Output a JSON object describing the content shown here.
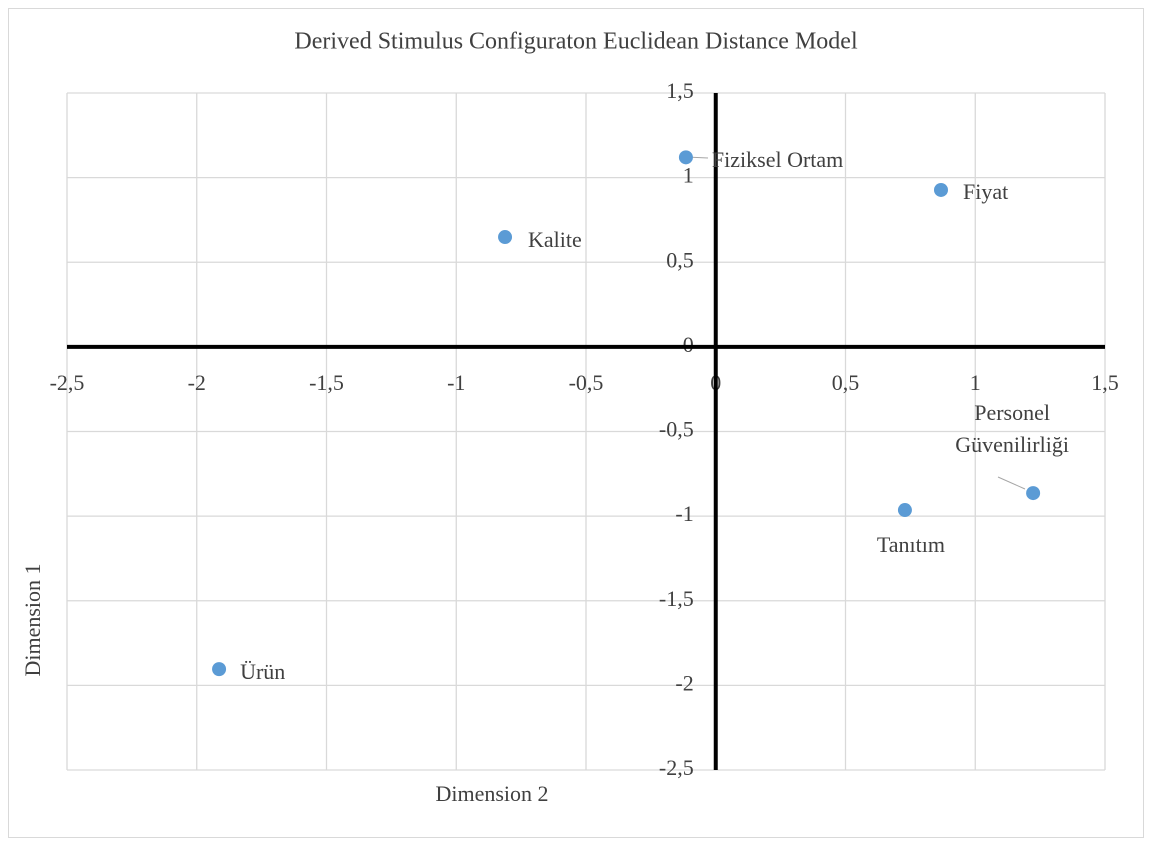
{
  "chart_data": {
    "type": "scatter",
    "title": "Derived Stimulus Configuraton Euclidean Distance Model",
    "xlabel": "Dimension 2",
    "ylabel": "Dimension 1",
    "labels": [
      "Fiziksel Ortam",
      "Fiyat",
      "Kalite",
      "Personel Güvenilirliği",
      "Tanıtım",
      "Ürün"
    ],
    "x": [
      -0.115,
      0.868,
      -0.812,
      1.223,
      0.729,
      -1.914
    ],
    "values": [
      1.12,
      0.927,
      0.649,
      -0.864,
      -0.964,
      -1.904
    ],
    "color": "#5b9bd5",
    "xlim": [
      -2.5,
      1.5
    ],
    "xticks": [
      {
        "value": -2.5,
        "label": "-2,5"
      },
      -2,
      {
        "value": -1.5,
        "label": "-1,5"
      },
      -1,
      {
        "value": -0.5,
        "label": "-0,5"
      },
      0,
      {
        "value": 0.5,
        "label": "0,5"
      },
      1,
      {
        "value": 1.5,
        "label": "1,5"
      }
    ],
    "ylim": [
      -2.5,
      1.5
    ],
    "yticks": [
      {
        "value": -2.5,
        "label": "-2,5"
      },
      -2,
      {
        "value": -1.5,
        "label": "-1,5"
      },
      -1,
      {
        "value": -0.5,
        "label": "-0,5"
      },
      0,
      {
        "value": 0.5,
        "label": "0,5"
      },
      1,
      {
        "value": 1.5,
        "label": "1,5"
      }
    ],
    "grid": true
  }
}
